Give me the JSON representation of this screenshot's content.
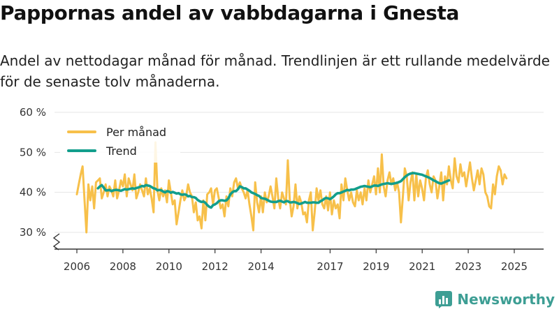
{
  "title": "Pappornas andel av vabbdagarna i Gnesta",
  "subtitle": "Andel av nettodagar månad för månad. Trendlinjen är ett rullande medelvärde för de senaste tolv månaderna.",
  "brand": "Newsworthy",
  "colors": {
    "monthly": "#f7c04a",
    "trend": "#129e8c",
    "grid": "#e6e6e6",
    "axis": "#333333",
    "brand": "#3d9e94"
  },
  "chart_data": {
    "type": "line",
    "title": "Pappornas andel av vabbdagarna i Gnesta",
    "ylim": [
      25,
      60
    ],
    "yticks": [
      30,
      40,
      50,
      60
    ],
    "ytick_labels": [
      "30 %",
      "40 %",
      "50 %",
      "60 %"
    ],
    "xlim": [
      2005.5,
      2026
    ],
    "xticks": [
      2006,
      2008,
      2010,
      2012,
      2014,
      2017,
      2019,
      2021,
      2023,
      2025
    ],
    "xtick_labels": [
      "2006",
      "2008",
      "2010",
      "2012",
      "2014",
      "2017",
      "2019",
      "2021",
      "2023",
      "2025"
    ],
    "legend": {
      "position": "top-left",
      "entries": [
        "Per månad",
        "Trend"
      ]
    },
    "series": [
      {
        "name": "Per månad",
        "x_start": 2006.0,
        "x_step": 0.0833,
        "values": [
          39.5,
          42,
          44.5,
          46.5,
          38,
          30,
          42,
          38,
          41.5,
          36,
          42.5,
          43,
          43.5,
          38.5,
          40,
          42,
          39,
          41.5,
          40.5,
          39,
          43,
          38.5,
          40.5,
          43,
          41.5,
          44.5,
          39,
          43.5,
          42,
          40.5,
          44.5,
          38.5,
          40,
          42,
          40.5,
          39,
          43.5,
          39.5,
          41,
          38.5,
          35,
          52.5,
          40.5,
          38,
          41,
          39,
          40.5,
          37.5,
          43,
          40,
          37,
          38,
          32,
          35,
          38,
          40.5,
          38,
          39,
          42,
          40,
          39,
          35,
          37.5,
          33,
          34,
          31,
          38,
          33,
          39.5,
          40,
          41,
          37,
          40.5,
          41,
          38.5,
          36,
          37,
          34,
          39,
          36.5,
          41,
          39,
          42.5,
          43.5,
          41,
          42.5,
          41,
          40,
          38.5,
          40.5,
          37,
          34,
          30.5,
          42.5,
          37.5,
          35,
          39,
          35,
          40,
          37.5,
          39,
          41.5,
          39,
          36,
          43.5,
          38.5,
          36,
          40,
          38.5,
          37,
          48,
          38.5,
          34,
          36.5,
          42,
          36,
          39,
          37.5,
          34.5,
          35,
          32.5,
          38,
          40,
          30.5,
          35,
          41,
          38,
          40.5,
          37,
          36,
          39,
          35.5,
          40,
          34.5,
          38,
          36,
          37,
          33.5,
          42,
          38,
          43.5,
          40.5,
          38,
          40,
          37.5,
          36.5,
          40.5,
          38,
          40,
          37,
          41,
          38,
          43,
          40,
          42,
          44,
          39.5,
          46,
          40,
          49.5,
          41.5,
          39,
          43,
          45,
          42,
          43.5,
          40.5,
          42.5,
          40,
          32.5,
          39,
          46,
          44,
          38,
          42.5,
          45,
          38,
          44.5,
          39,
          43,
          41,
          38,
          43.5,
          45.5,
          42,
          40,
          44,
          43,
          38.5,
          41.5,
          45,
          38,
          44,
          42,
          46.5,
          43,
          41,
          48.5,
          44,
          42.5,
          47,
          44,
          45,
          41.5,
          44.5,
          47.5,
          43.5,
          40.5,
          43,
          45.5,
          42,
          46,
          44.5,
          40,
          39,
          36.5,
          36,
          42,
          39.5,
          44,
          46.5,
          45.5,
          42,
          44.5,
          43.5
        ]
      },
      {
        "name": "Trend",
        "x_start": 2006.917,
        "x_step": 0.0833,
        "values": [
          41,
          41.5,
          41.8,
          41.2,
          40.5,
          40.5,
          40.6,
          40.3,
          40.5,
          40.6,
          40.6,
          40.5,
          40.4,
          40.6,
          40.8,
          40.7,
          40.8,
          40.9,
          41,
          40.9,
          41.1,
          41.2,
          41.4,
          41.6,
          41.5,
          41.8,
          41.7,
          41.6,
          41.3,
          41,
          40.9,
          40.5,
          40.6,
          40.5,
          40.2,
          40,
          40.3,
          40.2,
          39.9,
          40.1,
          39.9,
          39.7,
          39.8,
          39.5,
          39.4,
          39.5,
          39.4,
          39,
          39.1,
          38.8,
          38.8,
          38.6,
          38.1,
          37.8,
          37.6,
          37.7,
          37.4,
          36.8,
          36.4,
          36.2,
          36.8,
          37,
          37.3,
          37.8,
          38,
          38,
          37.9,
          38,
          38.5,
          39.5,
          40,
          40.3,
          40.3,
          40.8,
          41.5,
          41.3,
          41,
          41,
          40.7,
          40.4,
          40,
          39.8,
          39.6,
          39.3,
          39.1,
          38.6,
          38.5,
          38.4,
          38.2,
          37.9,
          37.7,
          37.6,
          37.6,
          37.6,
          37.8,
          37.9,
          37.7,
          37.5,
          37.8,
          37.8,
          37.5,
          37.5,
          37.6,
          37.5,
          37.3,
          37.1,
          37.2,
          37.4,
          37.6,
          37.4,
          37.4,
          37.4,
          37.5,
          37.5,
          37.4,
          37.4,
          37.8,
          38,
          38.4,
          38.6,
          38.5,
          38.3,
          38.6,
          39,
          39.5,
          39.8,
          39.8,
          40,
          40.2,
          40.4,
          40.6,
          40.5,
          40.7,
          40.7,
          40.8,
          41,
          41.2,
          41.4,
          41.5,
          41.6,
          41.5,
          41.4,
          41.3,
          41.5,
          41.7,
          41.7,
          41.6,
          41.8,
          42,
          42.1,
          42.2,
          42.3,
          42.2,
          42.1,
          42.2,
          42.3,
          42.4,
          42.6,
          42.8,
          43.3,
          43.8,
          44.2,
          44.5,
          44.7,
          44.8,
          44.8,
          44.7,
          44.6,
          44.5,
          44.4,
          44.2,
          44,
          43.8,
          43.6,
          43.3,
          43,
          42.8,
          42.5,
          42.3,
          42.2,
          42.4,
          42.6,
          42.8,
          43
        ]
      }
    ]
  }
}
